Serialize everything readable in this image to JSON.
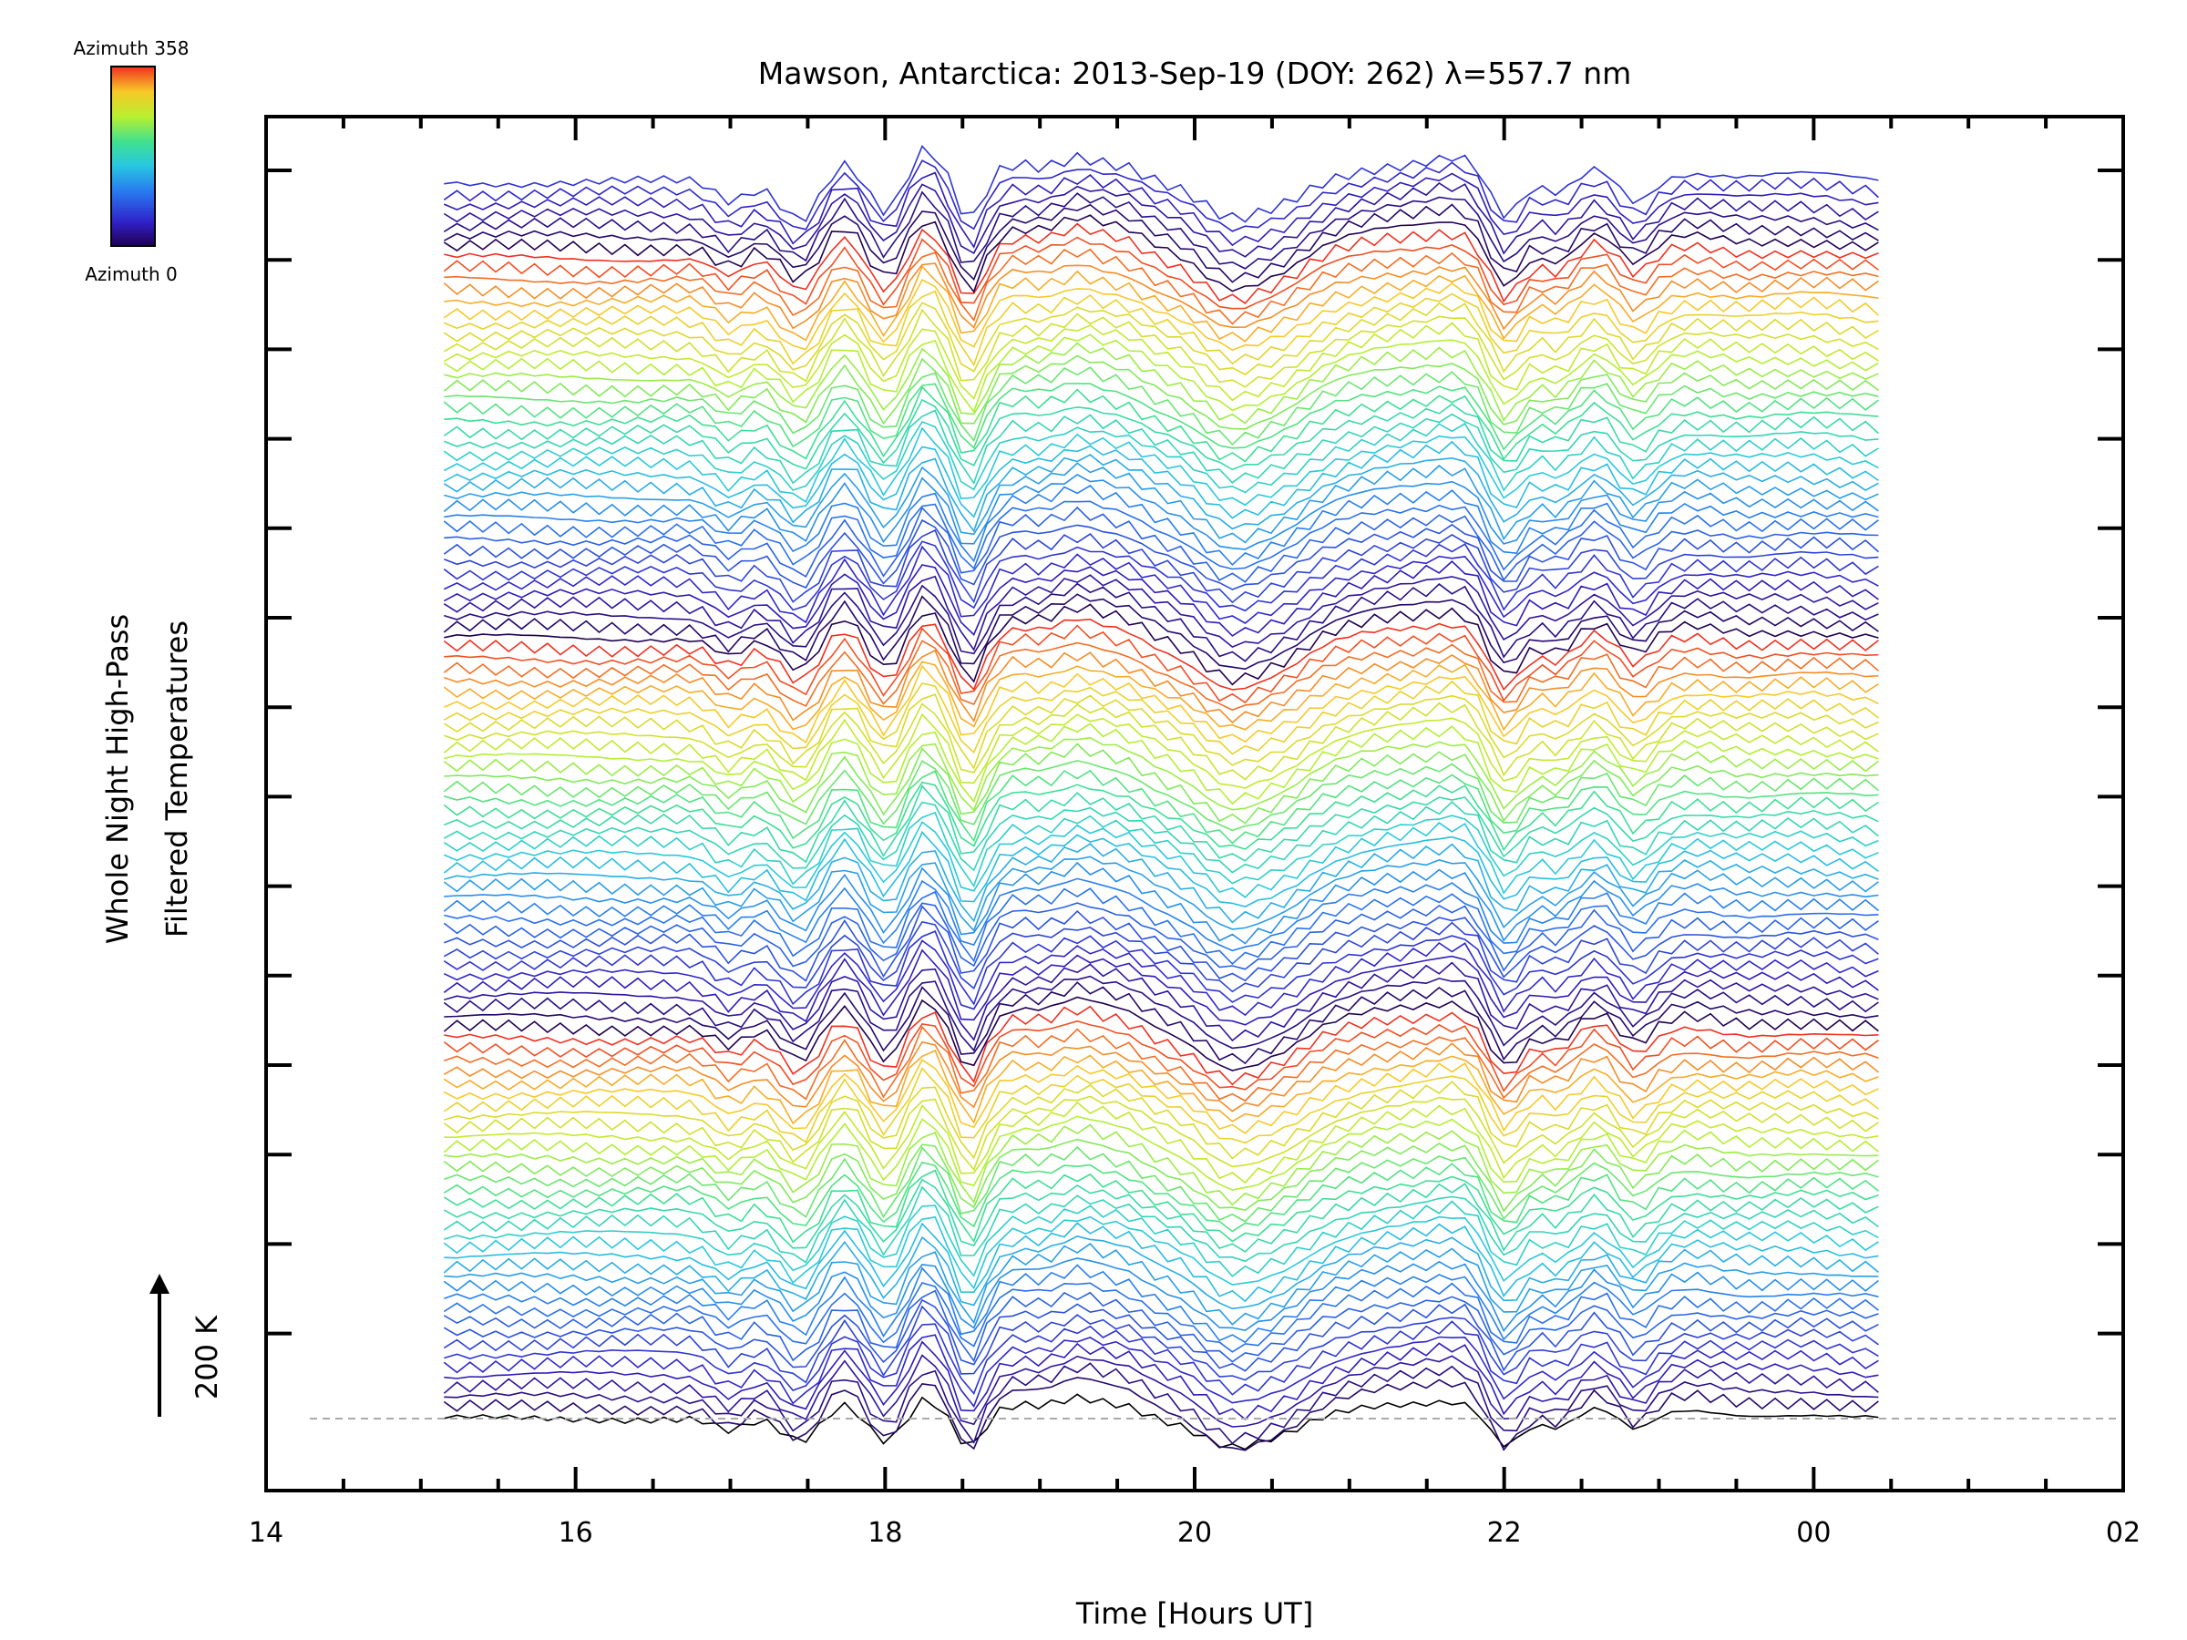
{
  "chart_data": {
    "type": "line",
    "title": "Mawson, Antarctica: 2013-Sep-19 (DOY: 262) λ=557.7 nm",
    "xlabel": "Time [Hours UT]",
    "ylabel": [
      "Whole Night High-Pass",
      "Filtered Temperatures"
    ],
    "scale_bar": {
      "label": "200 K",
      "value_K": 200
    },
    "colorbar": {
      "top_label": "Azimuth 358",
      "bottom_label": "Azimuth 0",
      "min": 0,
      "max": 358
    },
    "x_tick_labels": [
      "14",
      "16",
      "18",
      "20",
      "22",
      "00",
      "02"
    ],
    "x_ticks_hours": [
      14,
      16,
      18,
      20,
      22,
      24,
      26
    ],
    "xlim_hours": [
      14,
      26
    ],
    "data_span_hours": [
      15.15,
      24.45
    ],
    "series_count": 115,
    "grid": false,
    "baseline_dashed": true
  }
}
